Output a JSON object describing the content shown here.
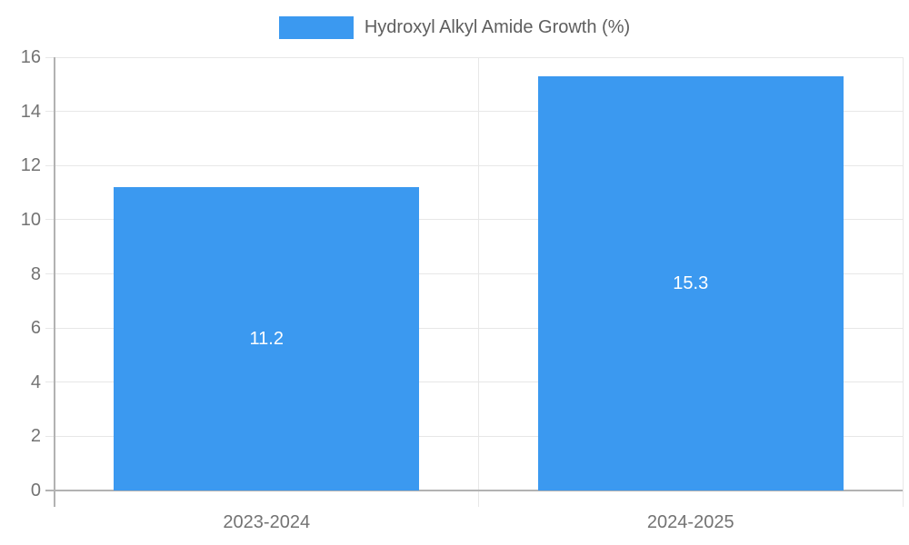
{
  "legend": {
    "label": "Hydroxyl Alkyl Amide Growth (%)",
    "position": "top-center"
  },
  "colors": {
    "bar": "#3B99F0",
    "grid": "#e7e7e7",
    "axis": "#b2b2b2",
    "tick_text": "#737373",
    "legend_text": "#5e5e5e",
    "data_label": "#ffffff",
    "background": "#ffffff"
  },
  "chart_data": {
    "type": "bar",
    "title": "",
    "xlabel": "",
    "ylabel": "",
    "categories": [
      "2023-2024",
      "2024-2025"
    ],
    "series": [
      {
        "name": "Hydroxyl Alkyl Amide Growth (%)",
        "values": [
          11.2,
          15.3
        ],
        "value_labels": [
          "11.2",
          "15.3"
        ]
      }
    ],
    "ylim": [
      0,
      16
    ],
    "yticks": [
      0,
      2,
      4,
      6,
      8,
      10,
      12,
      14,
      16
    ],
    "grid": true,
    "legend_position": "top",
    "data_labels": "inside-center"
  }
}
